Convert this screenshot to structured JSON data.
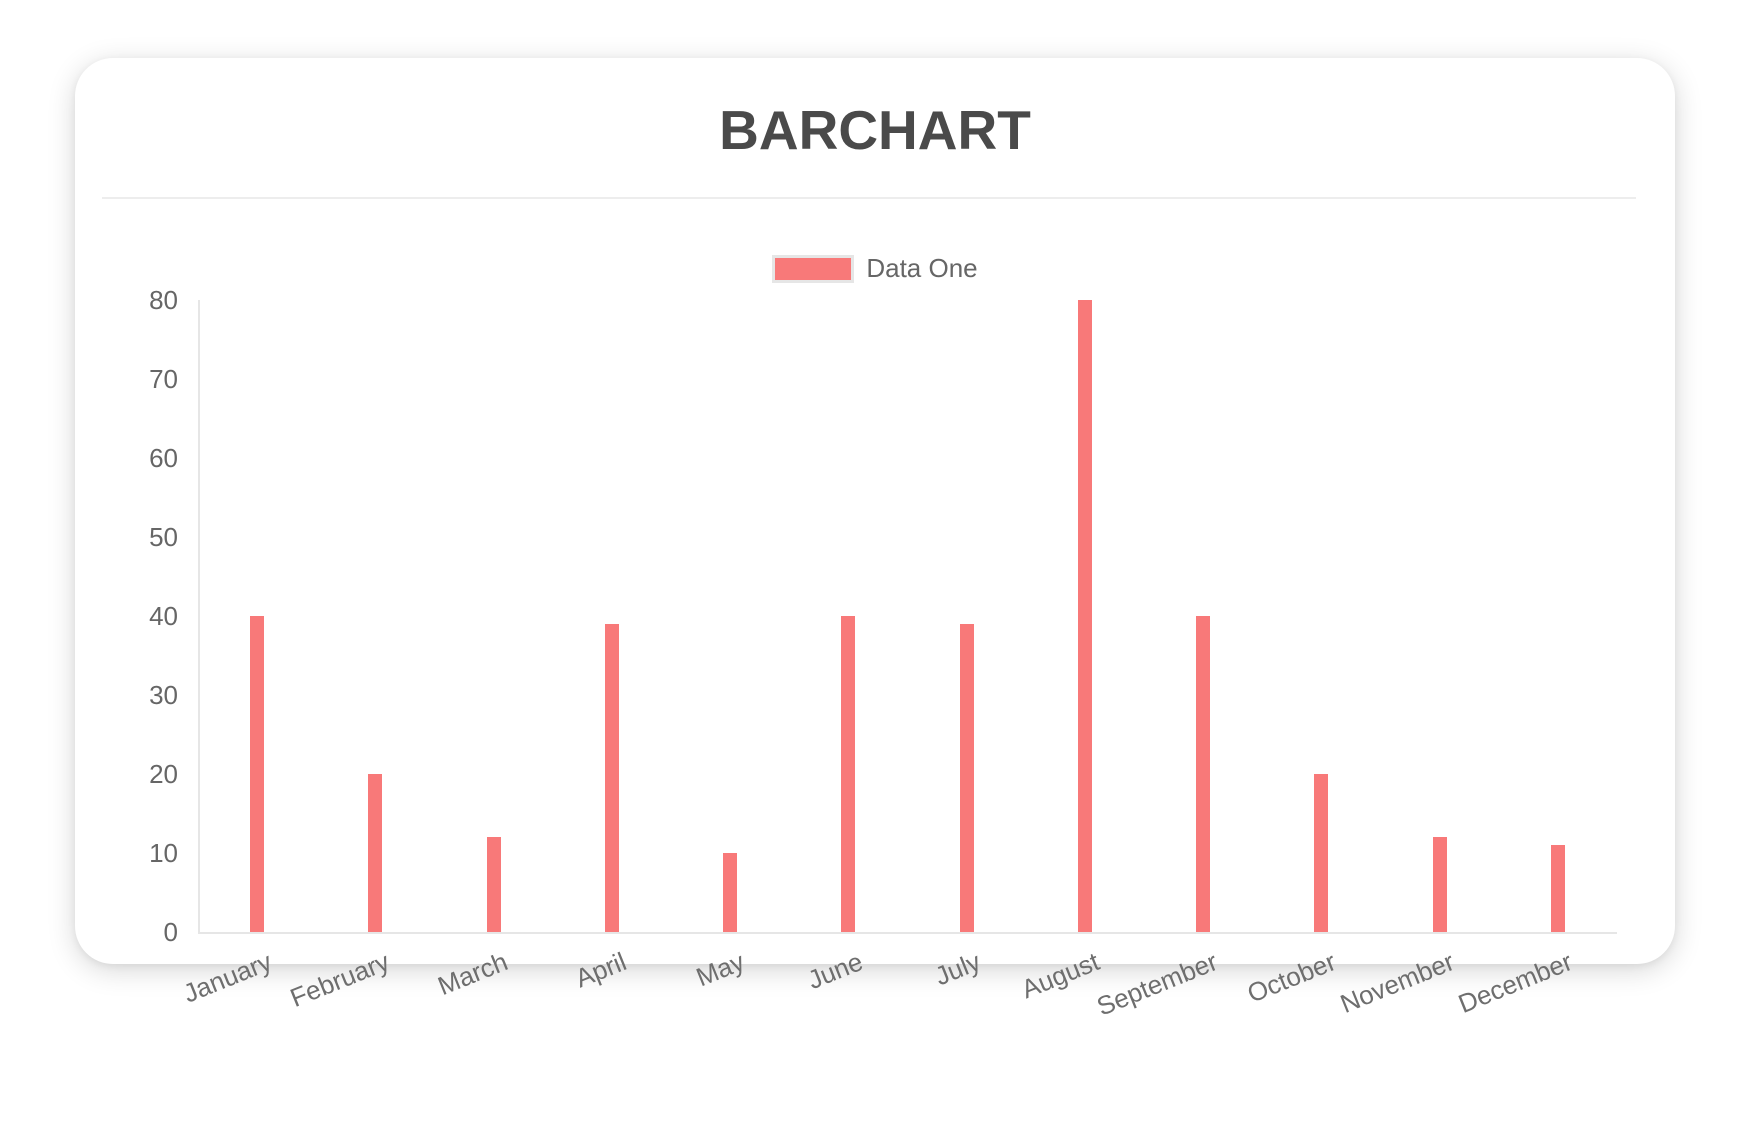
{
  "chart_data": {
    "type": "bar",
    "title": "BARCHART",
    "categories": [
      "January",
      "February",
      "March",
      "April",
      "May",
      "June",
      "July",
      "August",
      "September",
      "October",
      "November",
      "December"
    ],
    "series": [
      {
        "name": "Data One",
        "color": "#f87979",
        "values": [
          40,
          20,
          12,
          39,
          10,
          40,
          39,
          80,
          40,
          20,
          12,
          11
        ]
      }
    ],
    "xlabel": "",
    "ylabel": "",
    "ylim": [
      0,
      80
    ],
    "ytick_step": 10,
    "yticks": [
      0,
      10,
      20,
      30,
      40,
      50,
      60,
      70,
      80
    ],
    "grid": false,
    "legend_position": "top",
    "axis_color": "#e6e6e6",
    "tick_label_color": "#666666",
    "title_color": "#4a4a4a"
  }
}
